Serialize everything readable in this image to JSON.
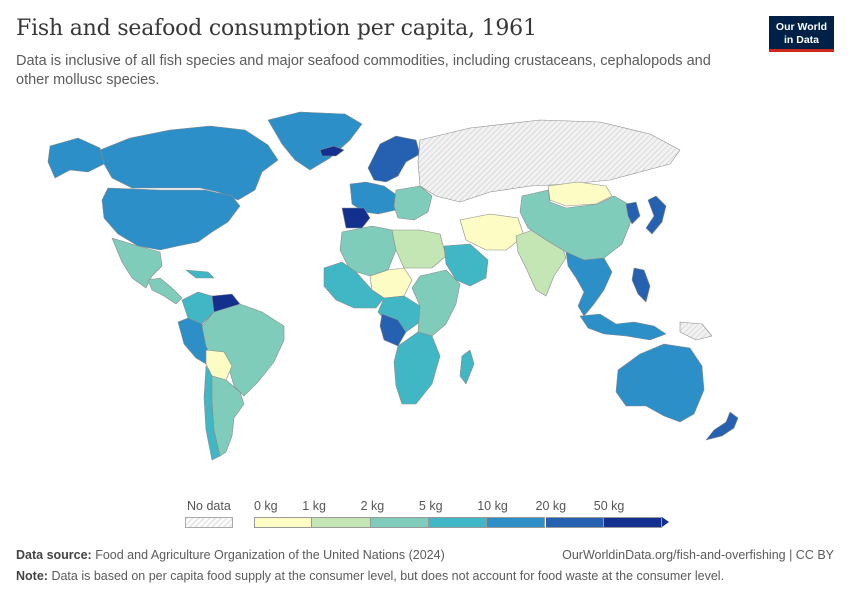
{
  "header": {
    "title": "Fish and seafood consumption per capita, 1961",
    "subtitle": "Data is inclusive of all fish species and major seafood commodities, including crustaceans, cephalopods and other mollusc species."
  },
  "logo": {
    "line1": "Our World",
    "line2": "in Data"
  },
  "legend": {
    "no_data_label": "No data",
    "bins": [
      {
        "label": "0 kg",
        "color": "#fdfcc5"
      },
      {
        "label": "1 kg",
        "color": "#c4e6b4"
      },
      {
        "label": "2 kg",
        "color": "#7fccbb"
      },
      {
        "label": "5 kg",
        "color": "#41b6c4"
      },
      {
        "label": "10 kg",
        "color": "#2c8fc8"
      },
      {
        "label": "20 kg",
        "color": "#2561b0"
      },
      {
        "label": "50 kg",
        "color": "#14308e"
      }
    ]
  },
  "colors": {
    "no_data": "#e8e8e8",
    "ocean": "#ffffff",
    "border": "#8c8c8c"
  },
  "regions": [
    {
      "name": "Canada",
      "color": "#2c8fc8"
    },
    {
      "name": "Greenland",
      "color": "#2c8fc8"
    },
    {
      "name": "United States",
      "color": "#2c8fc8"
    },
    {
      "name": "Alaska",
      "color": "#2c8fc8"
    },
    {
      "name": "Mexico",
      "color": "#7fccbb"
    },
    {
      "name": "Central America",
      "color": "#7fccbb"
    },
    {
      "name": "Cuba",
      "color": "#41b6c4"
    },
    {
      "name": "Venezuela",
      "color": "#14308e"
    },
    {
      "name": "Colombia",
      "color": "#41b6c4"
    },
    {
      "name": "Peru",
      "color": "#2c8fc8"
    },
    {
      "name": "Brazil",
      "color": "#7fccbb"
    },
    {
      "name": "Bolivia",
      "color": "#fdfcc5"
    },
    {
      "name": "Argentina",
      "color": "#7fccbb"
    },
    {
      "name": "Chile",
      "color": "#41b6c4"
    },
    {
      "name": "Iceland",
      "color": "#14308e"
    },
    {
      "name": "Scandinavia",
      "color": "#2561b0"
    },
    {
      "name": "Iberia",
      "color": "#14308e"
    },
    {
      "name": "Western Europe",
      "color": "#2c8fc8"
    },
    {
      "name": "Eastern Europe",
      "color": "#7fccbb"
    },
    {
      "name": "Soviet Union",
      "color": "#e8e8e8"
    },
    {
      "name": "North Africa",
      "color": "#7fccbb"
    },
    {
      "name": "Libya/Egypt",
      "color": "#c4e6b4"
    },
    {
      "name": "West Africa",
      "color": "#41b6c4"
    },
    {
      "name": "Sahel",
      "color": "#fdfcc5"
    },
    {
      "name": "Central Africa",
      "color": "#41b6c4"
    },
    {
      "name": "Congo",
      "color": "#2561b0"
    },
    {
      "name": "East Africa",
      "color": "#7fccbb"
    },
    {
      "name": "Southern Africa",
      "color": "#41b6c4"
    },
    {
      "name": "Madagascar",
      "color": "#41b6c4"
    },
    {
      "name": "Arabian Peninsula",
      "color": "#41b6c4"
    },
    {
      "name": "Iran/Afghanistan",
      "color": "#fdfcc5"
    },
    {
      "name": "India",
      "color": "#c4e6b4"
    },
    {
      "name": "China",
      "color": "#7fccbb"
    },
    {
      "name": "Mongolia",
      "color": "#fdfcc5"
    },
    {
      "name": "Southeast Asia",
      "color": "#2c8fc8"
    },
    {
      "name": "Japan",
      "color": "#2561b0"
    },
    {
      "name": "Korea",
      "color": "#2561b0"
    },
    {
      "name": "Philippines",
      "color": "#2561b0"
    },
    {
      "name": "Indonesia",
      "color": "#2c8fc8"
    },
    {
      "name": "Papua New Guinea",
      "color": "#e8e8e8"
    },
    {
      "name": "Australia",
      "color": "#2c8fc8"
    },
    {
      "name": "New Zealand",
      "color": "#2561b0"
    }
  ],
  "footer": {
    "source_label": "Data source:",
    "source_text": "Food and Agriculture Organization of the United Nations (2024)",
    "link": "OurWorldinData.org/fish-and-overfishing | CC BY",
    "note_label": "Note:",
    "note_text": "Data is based on per capita food supply at the consumer level, but does not account for food waste at the consumer level."
  }
}
